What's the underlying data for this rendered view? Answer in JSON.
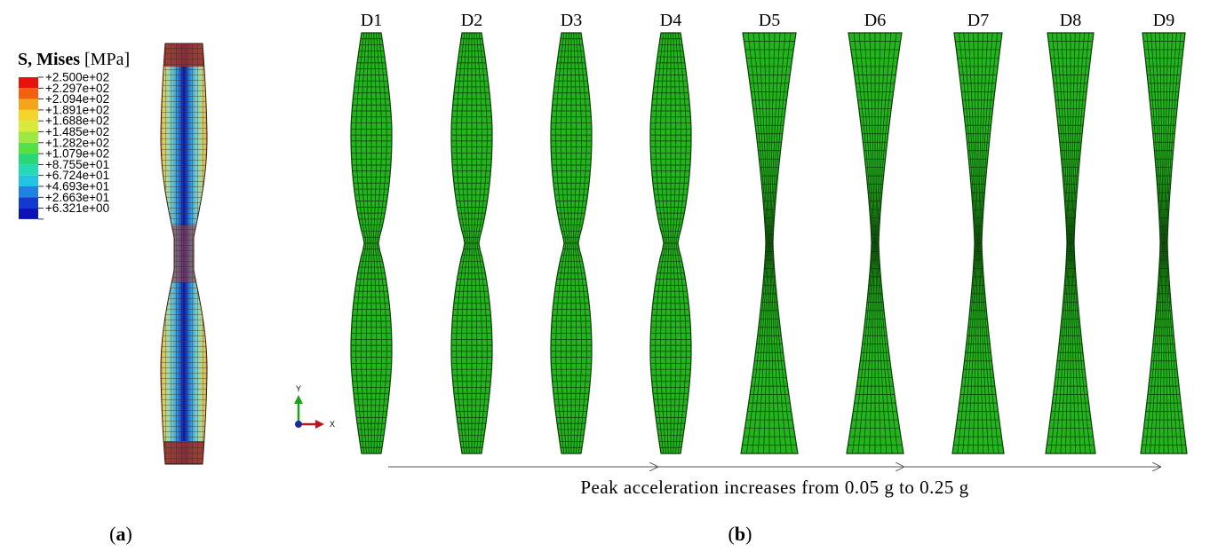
{
  "legend": {
    "title_bold": "S, Mises",
    "title_unit": " [MPa]",
    "levels": [
      {
        "value": "+2.500e+02",
        "color": "#e8120c"
      },
      {
        "value": "+2.297e+02",
        "color": "#f2620e"
      },
      {
        "value": "+2.094e+02",
        "color": "#f5a51c"
      },
      {
        "value": "+1.891e+02",
        "color": "#f4d52a"
      },
      {
        "value": "+1.688e+02",
        "color": "#d9ea3a"
      },
      {
        "value": "+1.485e+02",
        "color": "#9fe842"
      },
      {
        "value": "+1.282e+02",
        "color": "#55e048"
      },
      {
        "value": "+1.079e+02",
        "color": "#28d876"
      },
      {
        "value": "+8.755e+01",
        "color": "#23d9b6"
      },
      {
        "value": "+6.724e+01",
        "color": "#22c3e3"
      },
      {
        "value": "+4.693e+01",
        "color": "#1f82e0"
      },
      {
        "value": "+2.663e+01",
        "color": "#1439cf"
      },
      {
        "value": "+6.321e+00",
        "color": "#0a12b8"
      }
    ]
  },
  "specimens": [
    "D1",
    "D2",
    "D3",
    "D4",
    "D5",
    "D6",
    "D7",
    "D8",
    "D9"
  ],
  "axes": {
    "y": "Y",
    "x": "X"
  },
  "caption": "Peak acceleration increases from 0.05 g to 0.25 g",
  "panels": {
    "a": "a",
    "b": "b"
  },
  "colors": {
    "mesh_green": "#22b51c",
    "mesh_lines": "#0c3a08",
    "contour_outer": "#9b2c28"
  }
}
